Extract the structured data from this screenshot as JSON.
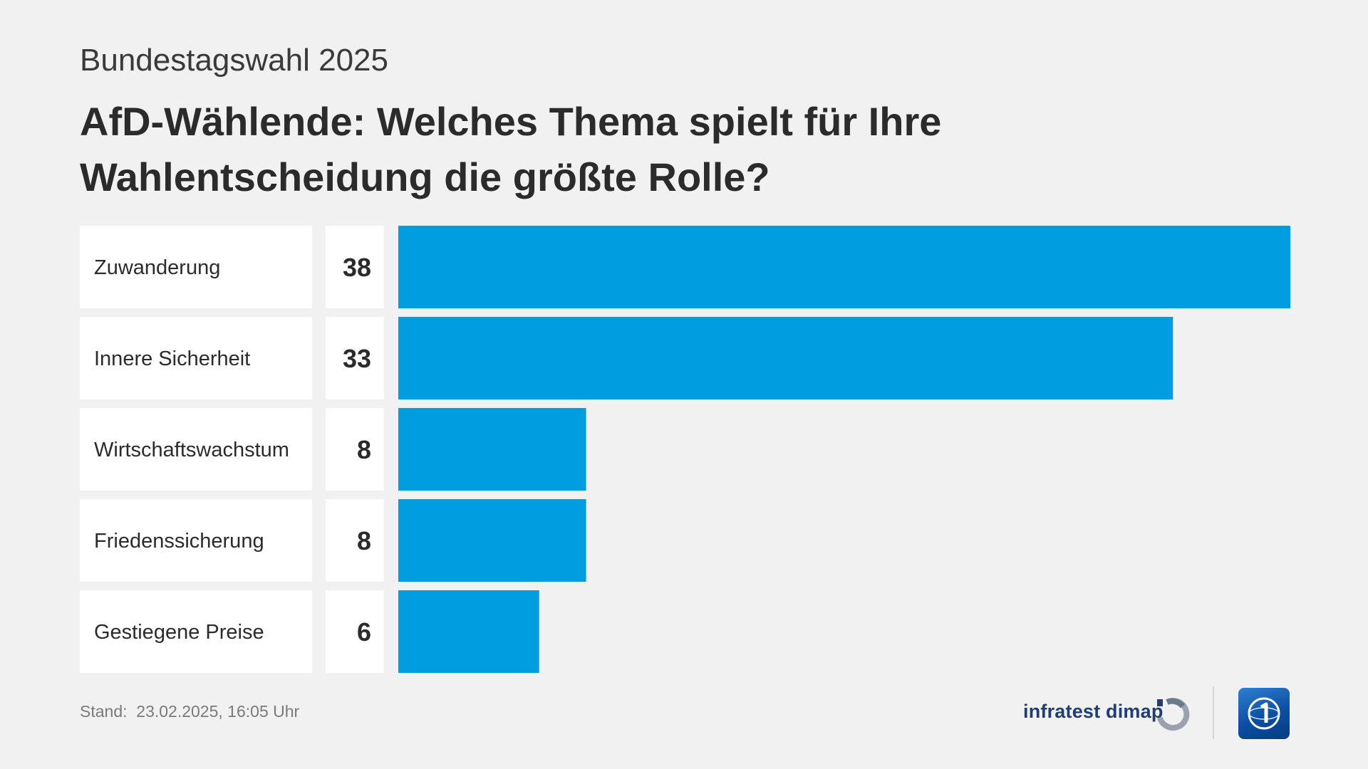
{
  "header": {
    "subtitle": "Bundestagswahl 2025",
    "title": "AfD-Wählende: Welches Thema spielt für Ihre Wahlentscheidung die größte Rolle?"
  },
  "chart_data": {
    "type": "bar",
    "orientation": "horizontal",
    "categories": [
      "Zuwanderung",
      "Innere Sicherheit",
      "Wirtschaftswachstum",
      "Friedenssicherung",
      "Gestiegene Preise"
    ],
    "values": [
      38,
      33,
      8,
      8,
      6
    ],
    "value_labels": [
      "38",
      "33",
      "8",
      "8",
      "6"
    ],
    "title": "AfD-Wählende: Welches Thema spielt für Ihre Wahlentscheidung die größte Rolle?",
    "subtitle": "Bundestagswahl 2025",
    "xlim": [
      0,
      38
    ],
    "grid": false,
    "bar_color": "#009ee0"
  },
  "footer": {
    "stand_label": "Stand:",
    "stand_value": "23.02.2025, 16:05 Uhr",
    "brand": "infratest dimap"
  },
  "icons": {
    "infratest_logo": "infratest-dimap-logo-icon",
    "ard_logo": "tagesschau-logo-icon"
  }
}
